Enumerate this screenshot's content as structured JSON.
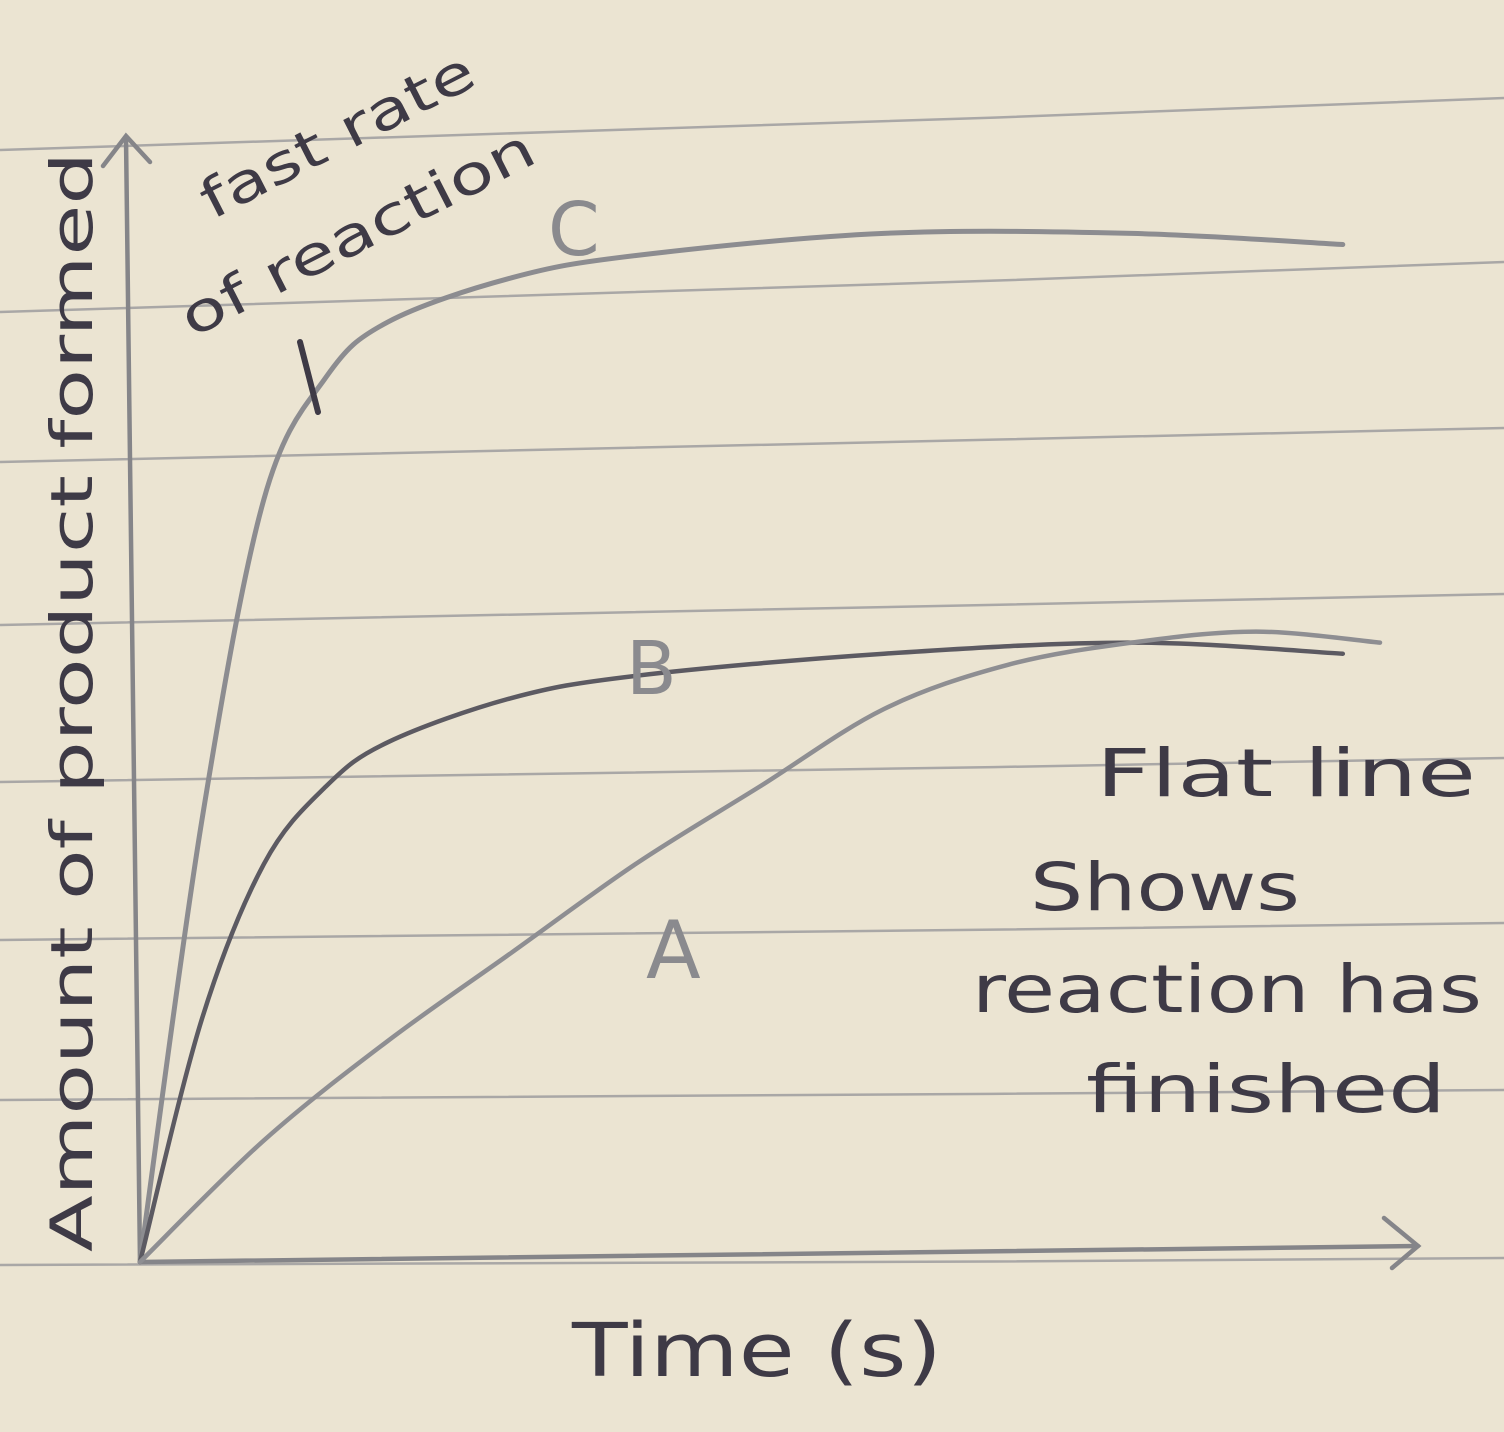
{
  "chart_data": {
    "type": "line",
    "title": "",
    "xlabel": "Time (s)",
    "ylabel": "Amount of product formed",
    "xlim": [
      0,
      10
    ],
    "ylim": [
      0,
      10
    ],
    "grid": false,
    "series": [
      {
        "name": "C",
        "x": [
          0,
          0.5,
          1,
          1.5,
          2,
          3,
          4,
          6,
          8,
          9.7
        ],
        "y": [
          0,
          4.0,
          6.9,
          8.0,
          8.5,
          8.9,
          9.1,
          9.3,
          9.3,
          9.2
        ]
      },
      {
        "name": "B",
        "x": [
          0,
          0.5,
          1,
          1.5,
          2,
          3,
          4,
          6,
          8,
          9.7
        ],
        "y": [
          0,
          2.2,
          3.6,
          4.3,
          4.7,
          5.1,
          5.3,
          5.5,
          5.6,
          5.5
        ]
      },
      {
        "name": "A",
        "x": [
          0,
          1,
          2,
          3,
          4,
          5,
          6,
          7,
          8,
          9,
          10
        ],
        "y": [
          0,
          1.1,
          2.0,
          2.8,
          3.6,
          4.3,
          5.0,
          5.4,
          5.6,
          5.7,
          5.6
        ]
      }
    ],
    "annotations": [
      {
        "id": "fast_rate",
        "text_lines": [
          "fast rate",
          "of reaction"
        ]
      },
      {
        "id": "flat_line",
        "text_lines": [
          "Flat line",
          "Shows",
          "reaction has",
          "finished"
        ]
      }
    ]
  }
}
